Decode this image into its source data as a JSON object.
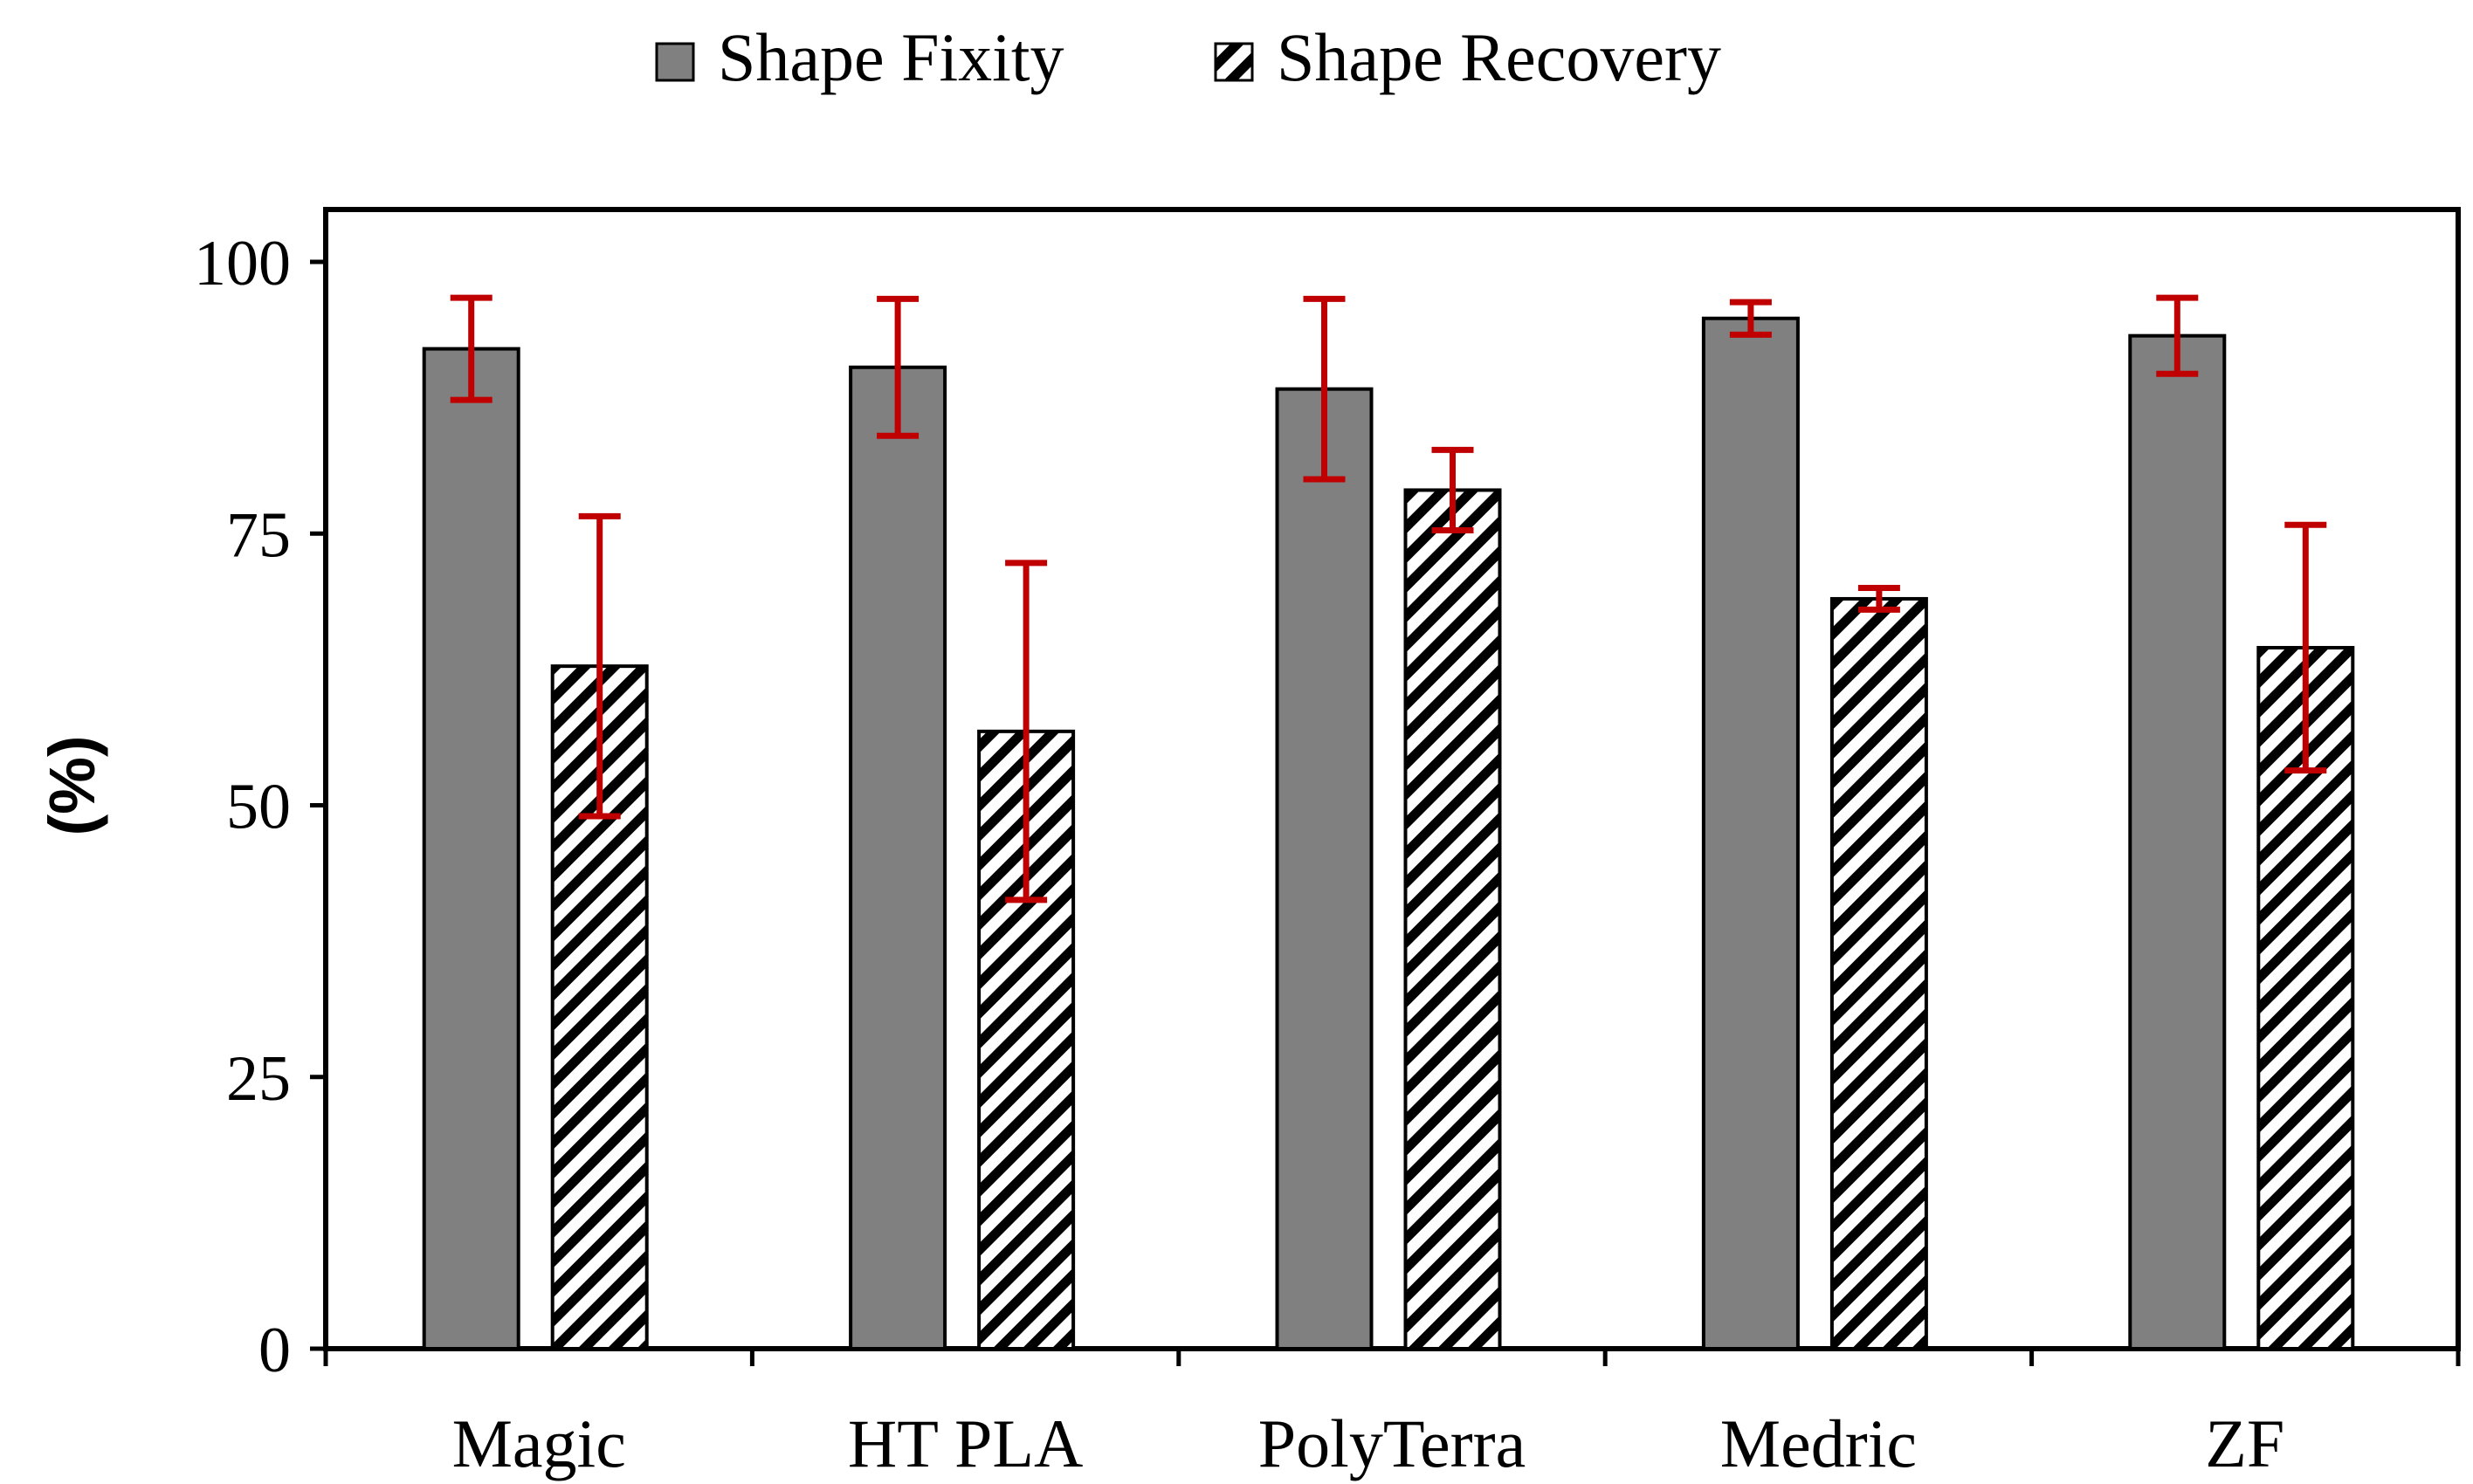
{
  "chart_data": {
    "type": "bar",
    "title": "",
    "xlabel": "",
    "ylabel": "(%)",
    "ylim": [
      0,
      100
    ],
    "yticks": [
      "0",
      "25",
      "50",
      "75",
      "100"
    ],
    "legend_position": "top",
    "grid": false,
    "categories": [
      "Magic",
      "HT PLA",
      "PolyTerra",
      "Medric",
      "ZF"
    ],
    "series": [
      {
        "name": "Shape Fixity",
        "style": "solid",
        "color": "#808080",
        "values": [
          92,
          90.3,
          88.3,
          94.8,
          93.2
        ],
        "error": [
          4.7,
          6.3,
          8.3,
          1.5,
          3.5
        ]
      },
      {
        "name": "Shape Recovery",
        "style": "hatched",
        "color": "#000000",
        "values": [
          62.8,
          56.8,
          79,
          69,
          64.5
        ],
        "error": [
          13.8,
          15.5,
          3.7,
          1.0,
          11.3
        ]
      }
    ],
    "error_bar_color": "#c00000"
  }
}
